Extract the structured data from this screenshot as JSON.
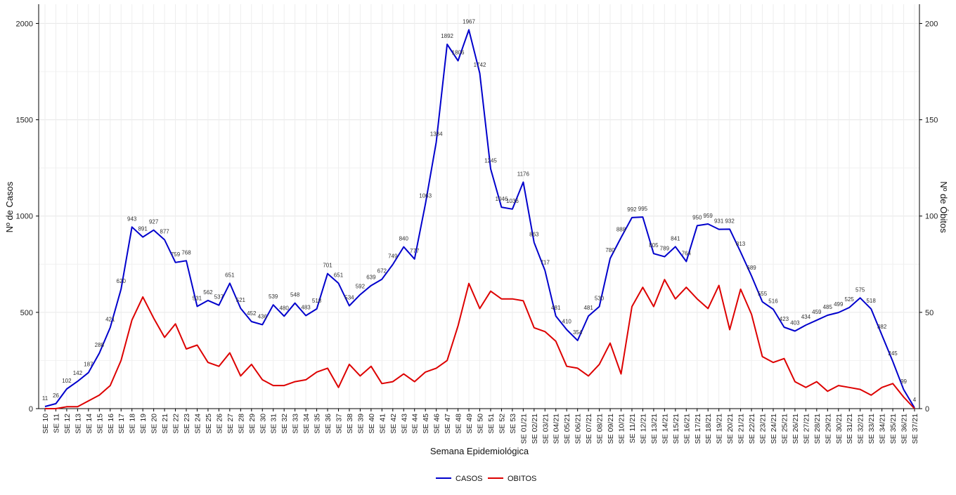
{
  "chart_data": {
    "type": "line",
    "xlabel": "Semana Epidemiológica",
    "ylabel_left": "Nº de Casos",
    "ylabel_right": "Nº de Óbitos",
    "ylim_left": [
      0,
      2100
    ],
    "ylim_right": [
      0,
      210
    ],
    "yticks_left": [
      0,
      500,
      1000,
      1500,
      2000
    ],
    "yticks_right": [
      0,
      50,
      100,
      150,
      200
    ],
    "grid": true,
    "legend_position": "bottom",
    "colors": {
      "CASOS": "#0000cc",
      "OBITOS": "#dd0000"
    },
    "x": [
      "SE 10",
      "SE 11",
      "SE 12",
      "SE 13",
      "SE 14",
      "SE 15",
      "SE 16",
      "SE 17",
      "SE 18",
      "SE 19",
      "SE 20",
      "SE 21",
      "SE 22",
      "SE 23",
      "SE 24",
      "SE 25",
      "SE 26",
      "SE 27",
      "SE 28",
      "SE 29",
      "SE 30",
      "SE 31",
      "SE 32",
      "SE 33",
      "SE 34",
      "SE 35",
      "SE 36",
      "SE 37",
      "SE 38",
      "SE 39",
      "SE 40",
      "SE 41",
      "SE 42",
      "SE 43",
      "SE 44",
      "SE 45",
      "SE 46",
      "SE 47",
      "SE 48",
      "SE 49",
      "SE 50",
      "SE 51",
      "SE 52",
      "SE 53",
      "SE 01/21",
      "SE 02/21",
      "SE 03/21",
      "SE 04/21",
      "SE 05/21",
      "SE 06/21",
      "SE 07/21",
      "SE 08/21",
      "SE 09/21",
      "SE 10/21",
      "SE 11/21",
      "SE 12/21",
      "SE 13/21",
      "SE 14/21",
      "SE 15/21",
      "SE 16/21",
      "SE 17/21",
      "SE 18/21",
      "SE 19/21",
      "SE 20/21",
      "SE 21/21",
      "SE 22/21",
      "SE 23/21",
      "SE 24/21",
      "SE 25/21",
      "SE 26/21",
      "SE 27/21",
      "SE 28/21",
      "SE 29/21",
      "SE 30/21",
      "SE 31/21",
      "SE 32/21",
      "SE 33/21",
      "SE 34/21",
      "SE 35/21",
      "SE 36/21",
      "SE 37/21"
    ],
    "series": [
      {
        "name": "CASOS",
        "axis": "left",
        "labeled": true,
        "values": [
          11,
          26,
          102,
          142,
          187,
          288,
          421,
          620,
          943,
          891,
          927,
          877,
          759,
          768,
          531,
          562,
          537,
          651,
          521,
          452,
          436,
          539,
          480,
          548,
          483,
          518,
          701,
          651,
          534,
          592,
          639,
          672,
          749,
          840,
          777,
          1063,
          1384,
          1892,
          1806,
          1967,
          1742,
          1245,
          1046,
          1036,
          1176,
          863,
          717,
          481,
          410,
          354,
          481,
          530,
          780,
          888,
          992,
          995,
          805,
          789,
          841,
          764,
          950,
          959,
          931,
          932,
          813,
          689,
          555,
          516,
          423,
          403,
          434,
          459,
          485,
          499,
          525,
          575,
          518,
          382,
          245,
          99,
          4
        ]
      },
      {
        "name": "OBITOS",
        "axis": "right",
        "labeled": false,
        "values": [
          0,
          0,
          1,
          1,
          4,
          7,
          12,
          25,
          46,
          58,
          47,
          37,
          44,
          31,
          33,
          24,
          22,
          29,
          17,
          23,
          15,
          12,
          12,
          14,
          15,
          19,
          21,
          11,
          23,
          17,
          22,
          13,
          14,
          18,
          14,
          19,
          21,
          25,
          43,
          65,
          52,
          61,
          57,
          57,
          56,
          42,
          40,
          35,
          22,
          21,
          17,
          23,
          34,
          18,
          53,
          63,
          53,
          67,
          57,
          63,
          57,
          52,
          64,
          41,
          62,
          49,
          27,
          24,
          26,
          14,
          11,
          14,
          9,
          12,
          11,
          10,
          7,
          11,
          13,
          6,
          0
        ]
      }
    ]
  }
}
